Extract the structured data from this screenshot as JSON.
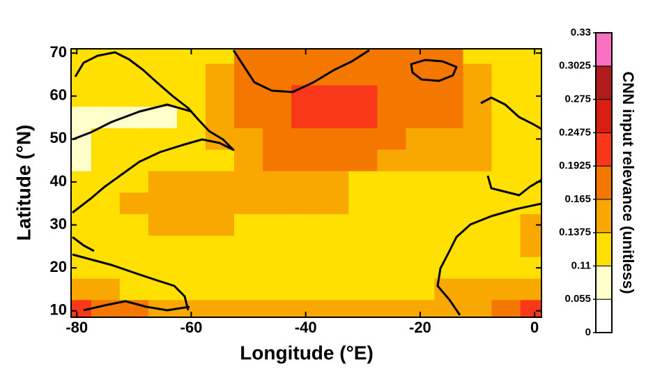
{
  "chart_data": {
    "type": "heatmap",
    "xlabel": "Longitude (°E)",
    "ylabel": "Latitude (°N)",
    "x": [
      -80,
      -75,
      -70,
      -65,
      -60,
      -55,
      -50,
      -45,
      -40,
      -35,
      -30,
      -25,
      -20,
      -15,
      -10,
      -5,
      0
    ],
    "y": [
      70,
      65,
      60,
      55,
      50,
      45,
      40,
      35,
      30,
      25,
      20,
      15,
      10
    ],
    "values": [
      [
        0.12,
        0.12,
        0.12,
        0.12,
        0.12,
        0.12,
        0.18,
        0.18,
        0.18,
        0.18,
        0.18,
        0.18,
        0.18,
        0.18,
        0.12,
        0.12,
        0.12
      ],
      [
        0.12,
        0.12,
        0.12,
        0.12,
        0.12,
        0.15,
        0.18,
        0.18,
        0.18,
        0.18,
        0.18,
        0.18,
        0.18,
        0.18,
        0.15,
        0.12,
        0.12
      ],
      [
        0.12,
        0.12,
        0.12,
        0.12,
        0.12,
        0.15,
        0.18,
        0.18,
        0.22,
        0.22,
        0.22,
        0.18,
        0.18,
        0.18,
        0.15,
        0.12,
        0.12
      ],
      [
        0.08,
        0.08,
        0.08,
        0.08,
        0.12,
        0.15,
        0.18,
        0.18,
        0.22,
        0.22,
        0.22,
        0.18,
        0.18,
        0.18,
        0.15,
        0.12,
        0.12
      ],
      [
        0.08,
        0.12,
        0.12,
        0.12,
        0.12,
        0.15,
        0.15,
        0.18,
        0.18,
        0.18,
        0.18,
        0.18,
        0.15,
        0.15,
        0.15,
        0.12,
        0.12
      ],
      [
        0.08,
        0.12,
        0.12,
        0.12,
        0.12,
        0.12,
        0.15,
        0.18,
        0.18,
        0.18,
        0.18,
        0.15,
        0.15,
        0.15,
        0.15,
        0.12,
        0.12
      ],
      [
        0.12,
        0.12,
        0.12,
        0.15,
        0.15,
        0.15,
        0.15,
        0.15,
        0.15,
        0.15,
        0.12,
        0.12,
        0.12,
        0.12,
        0.12,
        0.12,
        0.12
      ],
      [
        0.12,
        0.12,
        0.15,
        0.15,
        0.15,
        0.15,
        0.15,
        0.15,
        0.15,
        0.15,
        0.12,
        0.12,
        0.12,
        0.12,
        0.12,
        0.12,
        0.12
      ],
      [
        0.12,
        0.12,
        0.12,
        0.15,
        0.15,
        0.15,
        0.12,
        0.12,
        0.12,
        0.12,
        0.12,
        0.12,
        0.12,
        0.12,
        0.12,
        0.12,
        0.15
      ],
      [
        0.12,
        0.12,
        0.12,
        0.12,
        0.12,
        0.12,
        0.12,
        0.12,
        0.12,
        0.12,
        0.12,
        0.12,
        0.12,
        0.12,
        0.12,
        0.12,
        0.15
      ],
      [
        0.12,
        0.12,
        0.12,
        0.12,
        0.12,
        0.12,
        0.12,
        0.12,
        0.12,
        0.12,
        0.12,
        0.12,
        0.12,
        0.12,
        0.12,
        0.12,
        0.12
      ],
      [
        0.15,
        0.15,
        0.12,
        0.12,
        0.12,
        0.12,
        0.12,
        0.12,
        0.12,
        0.12,
        0.12,
        0.12,
        0.12,
        0.15,
        0.15,
        0.15,
        0.15
      ],
      [
        0.22,
        0.18,
        0.18,
        0.15,
        0.15,
        0.15,
        0.15,
        0.15,
        0.15,
        0.15,
        0.15,
        0.15,
        0.15,
        0.15,
        0.15,
        0.18,
        0.22
      ]
    ],
    "xlim": [
      -81,
      1.2
    ],
    "ylim": [
      8.5,
      71
    ],
    "xticks": [
      -80,
      -60,
      -40,
      -20,
      0
    ],
    "yticks": [
      10,
      20,
      30,
      40,
      50,
      60,
      70
    ],
    "colorbar": {
      "label": "CNN input relevance (unitless)",
      "ticks": [
        0,
        0.055,
        0.11,
        0.1375,
        0.165,
        0.1925,
        0.2475,
        0.275,
        0.3025,
        0.33
      ],
      "colors": [
        "#ffffff",
        "#ffffcc",
        "#ffe000",
        "#f8a800",
        "#f47800",
        "#f83818",
        "#d81e10",
        "#b01c1c",
        "#f870c0"
      ]
    }
  }
}
